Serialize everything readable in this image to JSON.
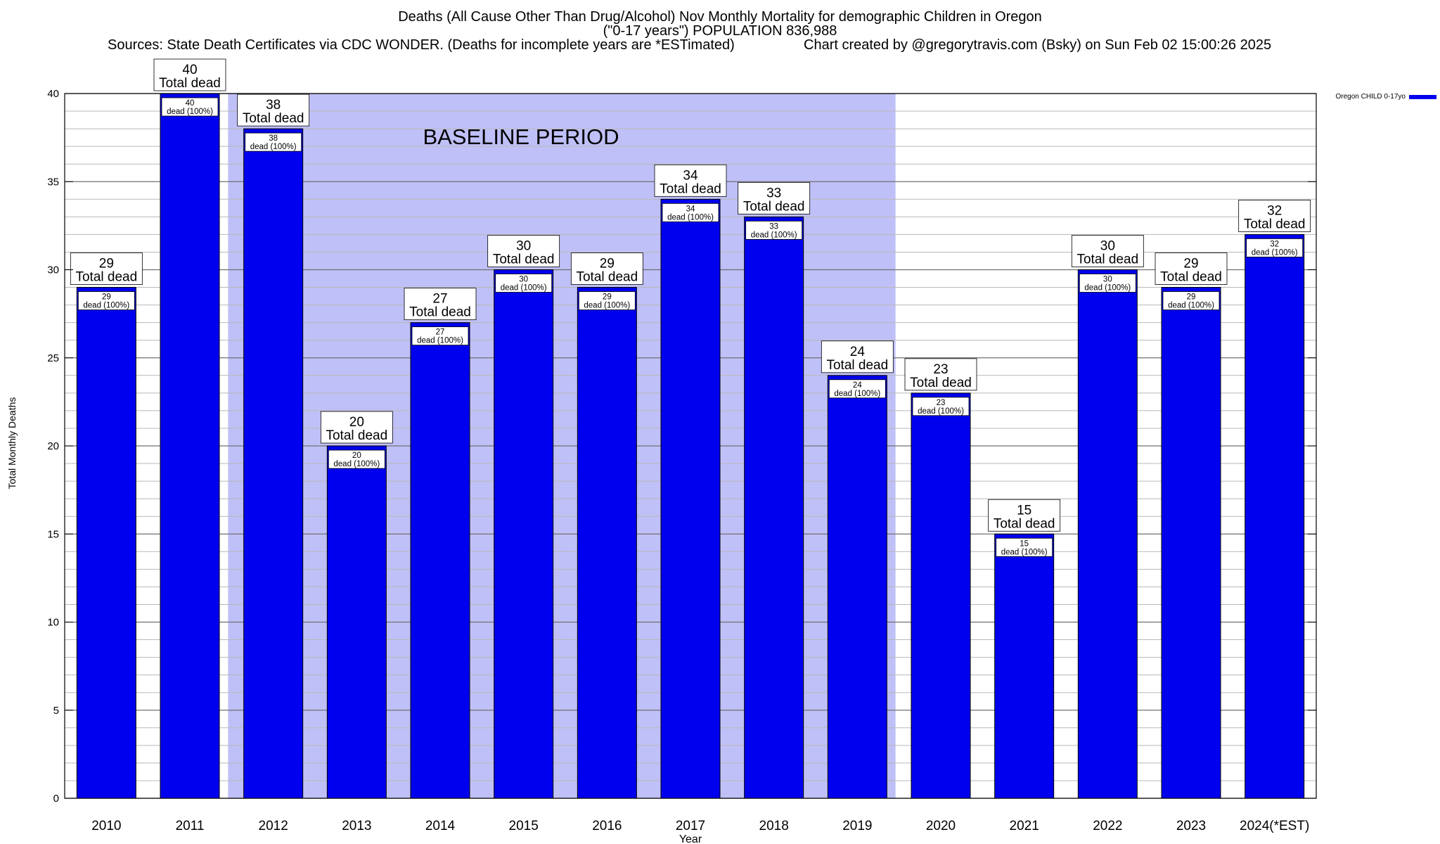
{
  "header": {
    "title_line1": "Deaths (All Cause Other Than Drug/Alcohol) Nov Monthly Mortality for demographic Children in Oregon",
    "title_line2": "(\"0-17 years\") POPULATION 836,988",
    "sources": "Sources: State Death Certificates via CDC WONDER. (Deaths for incomplete years are *ESTimated)",
    "credit": "Chart created by @gregorytravis.com (Bsky) on Sun Feb 02 15:00:26 2025"
  },
  "chart_data": {
    "type": "bar",
    "categories": [
      "2010",
      "2011",
      "2012",
      "2013",
      "2014",
      "2015",
      "2016",
      "2017",
      "2018",
      "2019",
      "2020",
      "2021",
      "2022",
      "2023",
      "2024(*EST)"
    ],
    "series": [
      {
        "name": "Oregon CHILD 0-17yo",
        "color": "#0000ee",
        "values": [
          29,
          40,
          38,
          20,
          27,
          30,
          29,
          34,
          33,
          24,
          23,
          15,
          30,
          29,
          32
        ]
      }
    ],
    "xlabel": "Year",
    "ylabel": "Total Monthly Deaths",
    "ylim": [
      0,
      40
    ],
    "yticks": [
      0,
      5,
      10,
      15,
      20,
      25,
      30,
      35,
      40
    ],
    "grid": true,
    "legend_position": "top-right",
    "top_label_suffix": "Total dead",
    "inner_label_suffix": "dead (100%)",
    "annotation": {
      "text": "BASELINE PERIOD",
      "from_category": "2012",
      "to_category": "2019",
      "color": "#c0c0f8"
    }
  }
}
